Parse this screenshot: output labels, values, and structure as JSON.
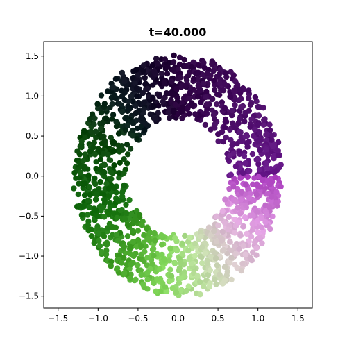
{
  "chart_data": {
    "type": "scatter",
    "title": "t=40.000",
    "xlabel": "",
    "ylabel": "",
    "xlim": [
      -1.68,
      1.68
    ],
    "ylim": [
      -1.65,
      1.68
    ],
    "xticks": [
      -1.5,
      -1.0,
      -0.5,
      0.0,
      0.5,
      1.0,
      1.5
    ],
    "xtick_labels": [
      "−1.5",
      "−1.0",
      "−0.5",
      "0.0",
      "0.5",
      "1.0",
      "1.5"
    ],
    "yticks": [
      -1.5,
      -1.0,
      -0.5,
      0.0,
      0.5,
      1.0,
      1.5
    ],
    "ytick_labels": [
      "−1.5",
      "−1.0",
      "−0.5",
      "0.0",
      "0.5",
      "1.0",
      "1.5"
    ],
    "grid": false,
    "legend": "none",
    "point_color_map": "PiYG (colour varies with angle around the ring)",
    "ring": {
      "center": [
        0.0,
        0.0
      ],
      "inner_radius": 0.75,
      "outer_radius": 1.5,
      "point_count": 1600
    }
  }
}
